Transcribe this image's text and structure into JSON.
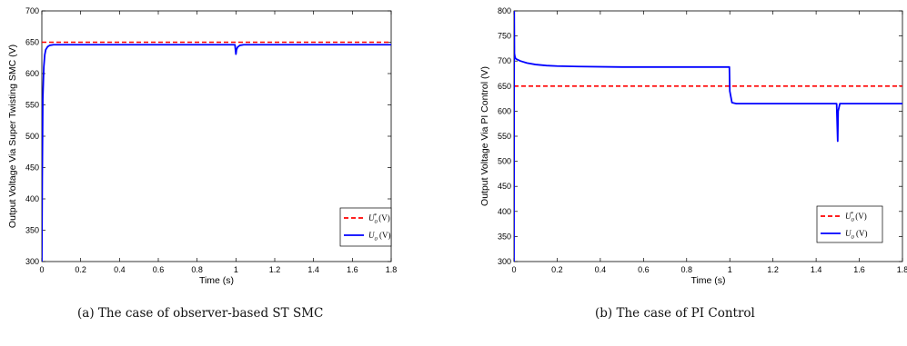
{
  "chart_data": [
    {
      "type": "line",
      "caption": "(a)  The case of observer-based ST SMC",
      "xlabel": "Time (s)",
      "ylabel": "Output Voltage Via Super Twisting SMC (V)",
      "xlim": [
        0,
        1.8
      ],
      "ylim": [
        300,
        700
      ],
      "xticks": [
        "0",
        "0.2",
        "0.4",
        "0.6",
        "0.8",
        "1",
        "1.2",
        "1.4",
        "1.6",
        "1.8"
      ],
      "yticks": [
        "300",
        "350",
        "400",
        "450",
        "500",
        "550",
        "600",
        "650",
        "700"
      ],
      "legend": "bottom-right",
      "grid": false,
      "series": [
        {
          "name": "U0* (V)",
          "color": "#ff0000",
          "dash": true,
          "x": [
            0,
            1.8
          ],
          "y": [
            650,
            650
          ]
        },
        {
          "name": "U0 (V)",
          "color": "#0000ff",
          "dash": false,
          "x": [
            0,
            0.002,
            0.005,
            0.01,
            0.015,
            0.02,
            0.03,
            0.04,
            0.06,
            0.1,
            0.995,
            1.0,
            1.003,
            1.008,
            1.02,
            1.04,
            1.8
          ],
          "y": [
            300,
            430,
            560,
            610,
            630,
            638,
            643,
            645,
            646,
            646,
            646,
            631,
            638,
            642,
            645,
            646,
            646
          ]
        }
      ]
    },
    {
      "type": "line",
      "caption": "(b)  The case of PI Control",
      "xlabel": "Time (s)",
      "ylabel": "Output Voltage Via PI Control (V)",
      "xlim": [
        0,
        1.8
      ],
      "ylim": [
        300,
        800
      ],
      "xticks": [
        "0",
        "0.2",
        "0.4",
        "0.6",
        "0.8",
        "1",
        "1.2",
        "1.4",
        "1.6",
        "1.8"
      ],
      "yticks": [
        "300",
        "350",
        "400",
        "450",
        "500",
        "550",
        "600",
        "650",
        "700",
        "750",
        "800"
      ],
      "legend": "bottom-right",
      "grid": false,
      "series": [
        {
          "name": "U0* (V)",
          "color": "#ff0000",
          "dash": true,
          "x": [
            0,
            1.8
          ],
          "y": [
            650,
            650
          ]
        },
        {
          "name": "U0 (V)",
          "color": "#0000ff",
          "dash": false,
          "x": [
            0,
            0.001,
            0.002,
            0.005,
            0.01,
            0.03,
            0.06,
            0.1,
            0.15,
            0.2,
            0.3,
            0.5,
            0.8,
            0.998,
            1.0,
            1.01,
            1.03,
            1.1,
            1.495,
            1.5,
            1.502,
            1.51,
            1.8
          ],
          "y": [
            300,
            800,
            715,
            707,
            704,
            700,
            696,
            693,
            691,
            690,
            689,
            688,
            688,
            688,
            640,
            617,
            615,
            615,
            615,
            540,
            600,
            615,
            615
          ]
        }
      ]
    }
  ]
}
